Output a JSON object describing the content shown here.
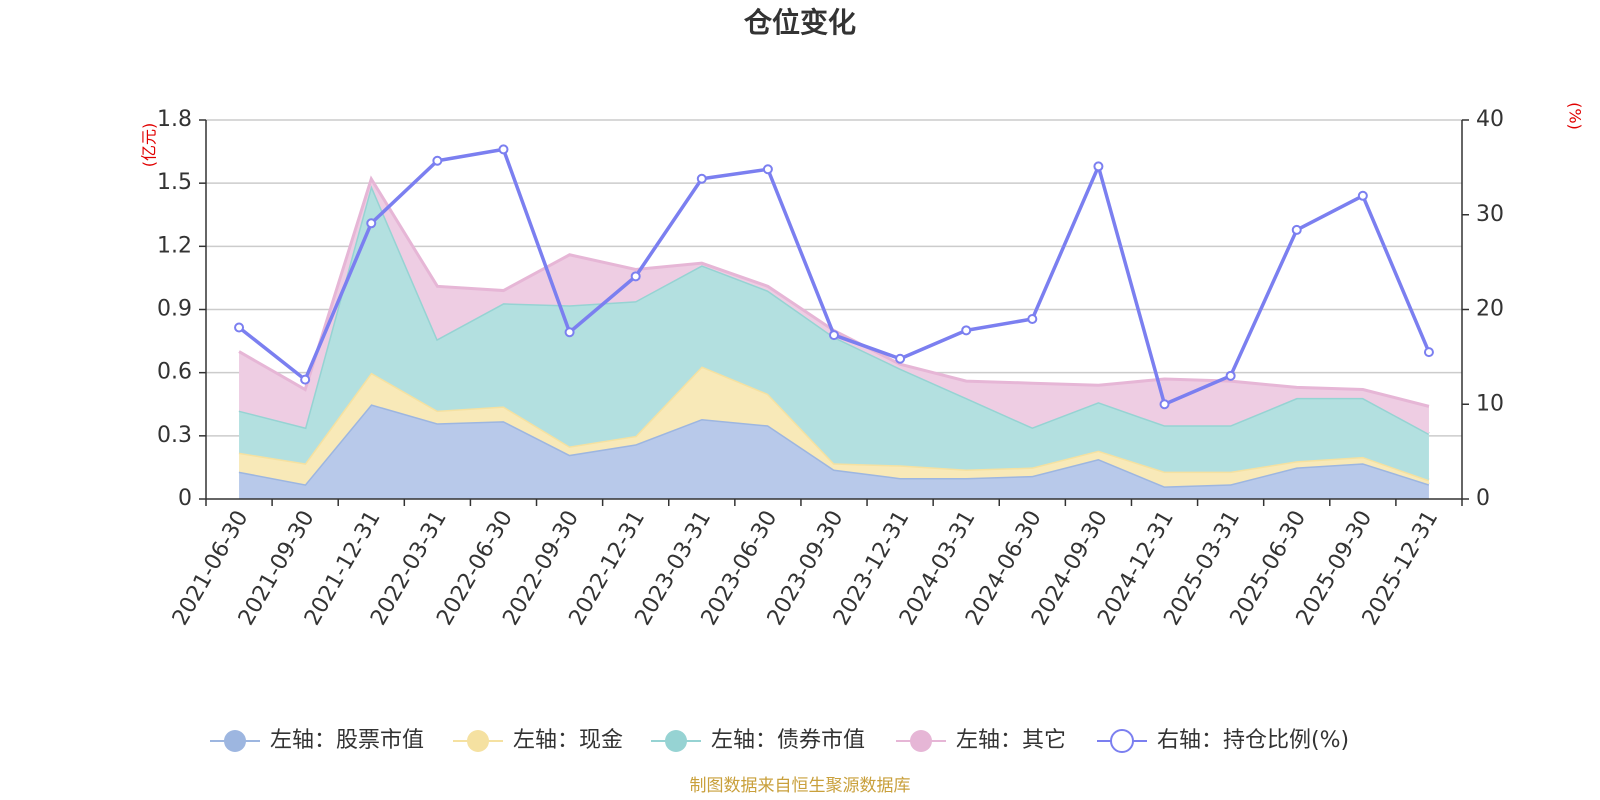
{
  "chart_data": {
    "type": "area",
    "title": "仓位变化",
    "left_unit": "(亿元)",
    "right_unit": "(%)",
    "categories": [
      "2021-06-30",
      "2021-09-30",
      "2021-12-31",
      "2022-03-31",
      "2022-06-30",
      "2022-09-30",
      "2022-12-31",
      "2023-03-31",
      "2023-06-30",
      "2023-09-30",
      "2023-12-31",
      "2024-03-31",
      "2024-06-30",
      "2024-09-30",
      "2024-12-31",
      "2025-03-31",
      "2025-06-30",
      "2025-09-30",
      "2025-12-31"
    ],
    "left_axis": {
      "min": 0,
      "max": 1.8,
      "ticks": [
        "0",
        "0.3",
        "0.6",
        "0.9",
        "1.2",
        "1.5",
        "1.8"
      ]
    },
    "right_axis": {
      "min": 0,
      "max": 40,
      "ticks": [
        "0",
        "10",
        "20",
        "30",
        "40"
      ]
    },
    "stacked_series": [
      {
        "name": "左轴：股票市值",
        "color": "#9db6e0",
        "fill": "#b8c9ea",
        "values": [
          0.13,
          0.07,
          0.45,
          0.36,
          0.37,
          0.21,
          0.26,
          0.38,
          0.35,
          0.14,
          0.1,
          0.1,
          0.11,
          0.19,
          0.06,
          0.07,
          0.15,
          0.17,
          0.07
        ]
      },
      {
        "name": "左轴：现金",
        "color": "#f5e1a1",
        "fill": "#f8e9b8",
        "values": [
          0.09,
          0.1,
          0.15,
          0.06,
          0.07,
          0.04,
          0.04,
          0.25,
          0.15,
          0.03,
          0.06,
          0.04,
          0.04,
          0.04,
          0.07,
          0.06,
          0.03,
          0.03,
          0.02
        ]
      },
      {
        "name": "左轴：债券市值",
        "color": "#96d3d3",
        "fill": "#b3e0e0",
        "values": [
          0.2,
          0.17,
          0.89,
          0.34,
          0.49,
          0.67,
          0.64,
          0.48,
          0.49,
          0.6,
          0.46,
          0.34,
          0.19,
          0.23,
          0.22,
          0.22,
          0.3,
          0.28,
          0.22
        ]
      },
      {
        "name": "左轴：其它",
        "color": "#e6b6d6",
        "fill": "#eecde3",
        "values": [
          0.28,
          0.18,
          0.03,
          0.25,
          0.06,
          0.24,
          0.15,
          0.01,
          0.02,
          0.03,
          0.02,
          0.08,
          0.21,
          0.08,
          0.22,
          0.21,
          0.05,
          0.04,
          0.13
        ]
      }
    ],
    "line_series": {
      "name": "右轴：持仓比例(%)",
      "color": "#7b7ff0",
      "axis": "right",
      "values": [
        18.1,
        12.6,
        29.1,
        35.7,
        36.9,
        17.6,
        23.5,
        33.8,
        34.8,
        17.3,
        14.8,
        17.8,
        19.0,
        35.1,
        10.0,
        13.0,
        28.4,
        32.0,
        15.5
      ]
    },
    "source": "制图数据来自恒生聚源数据库"
  }
}
